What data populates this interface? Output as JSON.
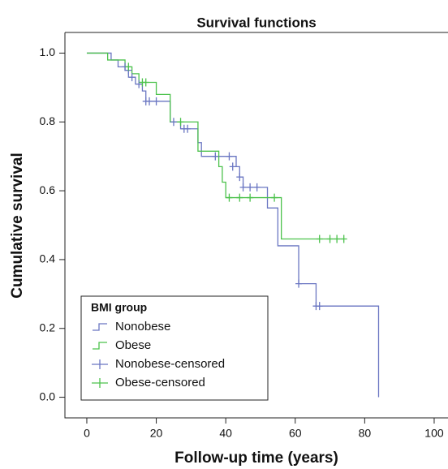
{
  "chart_data": {
    "type": "kaplan-meier",
    "title": "Survival functions",
    "x_label": "Follow-up time (years)",
    "y_label": "Cumulative survival",
    "xlim": [
      -6.3,
      104
    ],
    "ylim": [
      -0.06,
      1.06
    ],
    "xticks": [
      0,
      20,
      40,
      60,
      80,
      100
    ],
    "yticks": [
      {
        "value": 0,
        "label": "0.0"
      },
      {
        "value": 0.2,
        "label": "0.2"
      },
      {
        "value": 0.4,
        "label": "0.4"
      },
      {
        "value": 0.6,
        "label": "0.6"
      },
      {
        "value": 0.8,
        "label": "0.8"
      },
      {
        "value": 1,
        "label": "1.0"
      }
    ],
    "legend_title": "BMI group",
    "series": [
      {
        "name": "Nonobese",
        "style": "step",
        "color": "#6a76c2",
        "x": [
          0,
          7,
          9,
          11,
          12,
          14,
          16,
          17,
          24,
          27,
          32,
          33,
          43,
          44,
          45,
          52,
          55,
          61,
          66,
          84
        ],
        "values": [
          1.0,
          0.98,
          0.96,
          0.95,
          0.93,
          0.91,
          0.89,
          0.86,
          0.8,
          0.78,
          0.74,
          0.7,
          0.67,
          0.64,
          0.61,
          0.55,
          0.44,
          0.33,
          0.265,
          0.0
        ]
      },
      {
        "name": "Obese",
        "style": "step",
        "color": "#4cc24c",
        "x": [
          0,
          6,
          11,
          13,
          15,
          20,
          24,
          32,
          38,
          39,
          40,
          56,
          74
        ],
        "values": [
          1.0,
          0.98,
          0.96,
          0.94,
          0.915,
          0.88,
          0.8,
          0.715,
          0.67,
          0.625,
          0.58,
          0.46,
          0.46
        ]
      },
      {
        "name": "Nonobese-censored",
        "style": "censored",
        "color": "#6a76c2",
        "x": [
          11,
          12,
          13,
          15,
          17,
          18,
          20,
          25,
          28,
          29,
          37,
          41,
          42,
          44,
          45,
          47,
          49,
          61,
          66,
          67
        ],
        "values": [
          0.96,
          0.95,
          0.93,
          0.91,
          0.86,
          0.86,
          0.86,
          0.8,
          0.78,
          0.78,
          0.7,
          0.7,
          0.67,
          0.64,
          0.61,
          0.61,
          0.61,
          0.33,
          0.265,
          0.265
        ]
      },
      {
        "name": "Obese-censored",
        "style": "censored",
        "color": "#4cc24c",
        "x": [
          12,
          16,
          17,
          27,
          41,
          44,
          47,
          54,
          67,
          70,
          72,
          74
        ],
        "values": [
          0.96,
          0.915,
          0.915,
          0.8,
          0.58,
          0.58,
          0.58,
          0.58,
          0.46,
          0.46,
          0.46,
          0.46
        ]
      }
    ]
  }
}
